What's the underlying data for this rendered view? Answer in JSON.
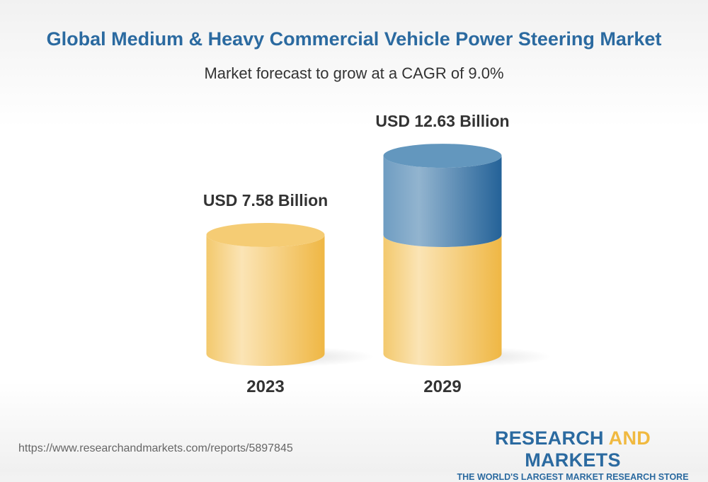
{
  "header": {
    "title": "Global Medium & Heavy Commercial Vehicle Power Steering Market",
    "subtitle": "Market forecast to grow at a CAGR of 9.0%"
  },
  "chart_data": {
    "type": "bar",
    "style": "3d-cylinder",
    "title": "Global Medium & Heavy Commercial Vehicle Power Steering Market",
    "subtitle": "Market forecast to grow at a CAGR of 9.0%",
    "categories": [
      "2023",
      "2029"
    ],
    "values": [
      7.58,
      12.63
    ],
    "data_labels": [
      "USD 7.58 Billion",
      "USD 12.63 Billion"
    ],
    "unit": "USD Billion",
    "grid": false,
    "colors": {
      "base": "#f2c25a",
      "growth": "#2b6aa0"
    }
  },
  "footer": {
    "url": "https://www.researchandmarkets.com/reports/5897845",
    "logo_part1": "RESEARCH ",
    "logo_part2": "AND",
    "logo_part3": " MARKETS",
    "tagline": "THE WORLD'S LARGEST MARKET RESEARCH STORE"
  }
}
